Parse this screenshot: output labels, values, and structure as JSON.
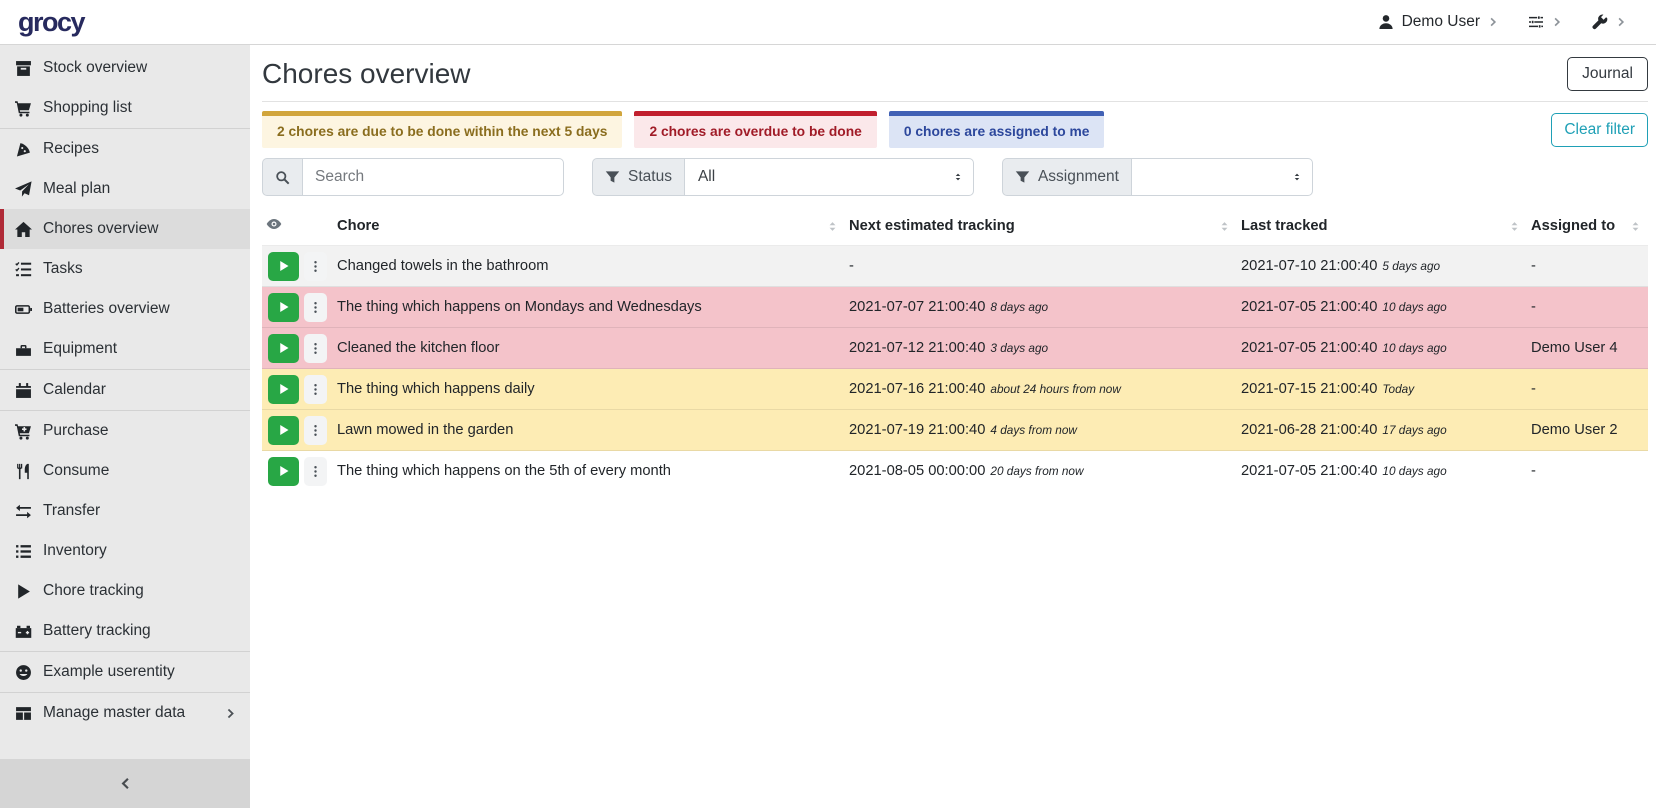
{
  "navbar": {
    "logo": "grocy",
    "user_menu": {
      "label": "Demo User",
      "icon": "user-icon"
    },
    "settings_menu": {
      "icon": "sliders-icon"
    },
    "admin_menu": {
      "icon": "wrench-icon"
    }
  },
  "sidebar": {
    "items": [
      {
        "label": "Stock overview",
        "icon": "box-icon"
      },
      {
        "label": "Shopping list",
        "icon": "cart-icon"
      },
      {
        "label": "Recipes",
        "icon": "pizza-icon"
      },
      {
        "label": "Meal plan",
        "icon": "paper-plane-icon"
      },
      {
        "label": "Chores overview",
        "icon": "home-icon",
        "active": true
      },
      {
        "label": "Tasks",
        "icon": "tasks-icon"
      },
      {
        "label": "Batteries overview",
        "icon": "battery-icon"
      },
      {
        "label": "Equipment",
        "icon": "toolbox-icon"
      },
      {
        "label": "Calendar",
        "icon": "calendar-icon"
      },
      {
        "label": "Purchase",
        "icon": "cart-plus-icon"
      },
      {
        "label": "Consume",
        "icon": "utensils-icon"
      },
      {
        "label": "Transfer",
        "icon": "exchange-icon"
      },
      {
        "label": "Inventory",
        "icon": "list-icon"
      },
      {
        "label": "Chore tracking",
        "icon": "play-icon"
      },
      {
        "label": "Battery tracking",
        "icon": "car-battery-icon"
      },
      {
        "label": "Example userentity",
        "icon": "smiley-icon"
      },
      {
        "label": "Manage master data",
        "icon": "table-icon",
        "has_submenu": true
      }
    ]
  },
  "page": {
    "title": "Chores overview",
    "journal_button": "Journal",
    "clear_filter_button": "Clear filter",
    "status_cards": [
      {
        "text": "2 chores are due to be done within the next 5 days",
        "accent": "#d1a53c",
        "background": "#fdf5e1",
        "color": "#8a6d1e"
      },
      {
        "text": "2 chores are overdue to be done",
        "accent": "#c11f2e",
        "background": "#fbe8ea",
        "color": "#a01b27"
      },
      {
        "text": "0 chores are assigned to me",
        "accent": "#4161b5",
        "background": "#dce4f5",
        "color": "#2c479c"
      }
    ],
    "search_placeholder": "Search",
    "filters": [
      {
        "label": "Status",
        "value": "All"
      },
      {
        "label": "Assignment",
        "value": ""
      }
    ]
  },
  "table": {
    "columns": [
      "Chore",
      "Next estimated tracking",
      "Last tracked",
      "Assigned to"
    ],
    "rows": [
      {
        "chore": "Changed towels in the bathroom",
        "next": "-",
        "next_ago": "",
        "last": "2021-07-10 21:00:40",
        "last_ago": "5 days ago",
        "assigned": "-",
        "status": "none"
      },
      {
        "chore": "The thing which happens on Mondays and Wednesdays",
        "next": "2021-07-07 21:00:40",
        "next_ago": "8 days ago",
        "last": "2021-07-05 21:00:40",
        "last_ago": "10 days ago",
        "assigned": "-",
        "status": "overdue"
      },
      {
        "chore": "Cleaned the kitchen floor",
        "next": "2021-07-12 21:00:40",
        "next_ago": "3 days ago",
        "last": "2021-07-05 21:00:40",
        "last_ago": "10 days ago",
        "assigned": "Demo User 4",
        "status": "overdue"
      },
      {
        "chore": "The thing which happens daily",
        "next": "2021-07-16 21:00:40",
        "next_ago": "about 24 hours from now",
        "last": "2021-07-15 21:00:40",
        "last_ago": "Today",
        "assigned": "-",
        "status": "due-soon"
      },
      {
        "chore": "Lawn mowed in the garden",
        "next": "2021-07-19 21:00:40",
        "next_ago": "4 days from now",
        "last": "2021-06-28 21:00:40",
        "last_ago": "17 days ago",
        "assigned": "Demo User 2",
        "status": "due-soon"
      },
      {
        "chore": "The thing which happens on the 5th of every month",
        "next": "2021-08-05 00:00:00",
        "next_ago": "20 days from now",
        "last": "2021-07-05 21:00:40",
        "last_ago": "10 days ago",
        "assigned": "-",
        "status": "none"
      }
    ]
  }
}
